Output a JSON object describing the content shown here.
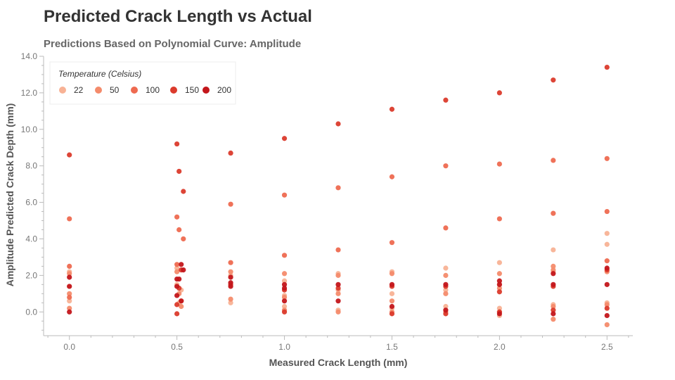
{
  "chart_data": {
    "type": "scatter",
    "title": "Predicted Crack Length vs Actual",
    "subtitle": "Predictions Based on Polynomial Curve: Amplitude",
    "xlabel": "Measured Crack Length (mm)",
    "ylabel": "Amplitude Predicted Crack Depth (mm)",
    "xlim": [
      -0.12,
      2.62
    ],
    "ylim": [
      -1.3,
      14.0
    ],
    "x_ticks": [
      "0.0",
      "0.5",
      "1.0",
      "1.5",
      "2.0",
      "2.5"
    ],
    "y_ticks": [
      "0.0",
      "2.0",
      "4.0",
      "6.0",
      "8.0",
      "10.0",
      "12.0",
      "14.0"
    ],
    "grid": false,
    "legend": {
      "title": "Temperature (Celsius)",
      "position": "top-left"
    },
    "series": [
      {
        "name": "22",
        "color": "#f8b295",
        "points": [
          [
            0.0,
            2.2
          ],
          [
            0.0,
            1.4
          ],
          [
            0.0,
            0.6
          ],
          [
            0.5,
            2.4
          ],
          [
            0.5,
            1.5
          ],
          [
            0.51,
            0.5
          ],
          [
            0.52,
            1.2
          ],
          [
            0.75,
            2.0
          ],
          [
            0.75,
            0.5
          ],
          [
            1.0,
            1.7
          ],
          [
            1.0,
            0.9
          ],
          [
            1.0,
            0.3
          ],
          [
            1.25,
            2.1
          ],
          [
            1.25,
            1.2
          ],
          [
            1.25,
            0.1
          ],
          [
            1.5,
            2.2
          ],
          [
            1.5,
            1.0
          ],
          [
            1.5,
            0.2
          ],
          [
            1.75,
            2.4
          ],
          [
            1.75,
            1.2
          ],
          [
            1.75,
            0.3
          ],
          [
            2.0,
            2.7
          ],
          [
            2.0,
            1.5
          ],
          [
            2.0,
            0.2
          ],
          [
            2.0,
            -0.2
          ],
          [
            2.25,
            3.4
          ],
          [
            2.25,
            2.2
          ],
          [
            2.25,
            0.4
          ],
          [
            2.5,
            4.3
          ],
          [
            2.5,
            3.7
          ],
          [
            2.5,
            0.5
          ]
        ]
      },
      {
        "name": "50",
        "color": "#f48b6b",
        "points": [
          [
            0.0,
            2.1
          ],
          [
            0.0,
            1.0
          ],
          [
            0.0,
            0.2
          ],
          [
            0.5,
            2.2
          ],
          [
            0.51,
            1.0
          ],
          [
            0.52,
            0.3
          ],
          [
            0.75,
            2.2
          ],
          [
            0.75,
            0.7
          ],
          [
            1.0,
            2.1
          ],
          [
            1.0,
            0.8
          ],
          [
            1.0,
            0.1
          ],
          [
            1.25,
            2.0
          ],
          [
            1.25,
            1.0
          ],
          [
            1.25,
            0.0
          ],
          [
            1.5,
            2.1
          ],
          [
            1.5,
            0.6
          ],
          [
            1.5,
            0.0
          ],
          [
            1.75,
            2.0
          ],
          [
            1.75,
            1.0
          ],
          [
            1.75,
            0.0
          ],
          [
            2.0,
            2.1
          ],
          [
            2.0,
            1.3
          ],
          [
            2.0,
            0.0
          ],
          [
            2.25,
            2.5
          ],
          [
            2.25,
            2.3
          ],
          [
            2.25,
            0.3
          ],
          [
            2.25,
            -0.4
          ],
          [
            2.5,
            2.2
          ],
          [
            2.5,
            0.4
          ],
          [
            2.5,
            -0.7
          ]
        ]
      },
      {
        "name": "100",
        "color": "#ee6a50",
        "points": [
          [
            0.0,
            5.1
          ],
          [
            0.0,
            2.5
          ],
          [
            0.0,
            0.8
          ],
          [
            0.5,
            5.2
          ],
          [
            0.51,
            4.5
          ],
          [
            0.53,
            4.0
          ],
          [
            0.5,
            2.6
          ],
          [
            0.52,
            0.6
          ],
          [
            0.75,
            5.9
          ],
          [
            0.75,
            2.7
          ],
          [
            1.0,
            6.4
          ],
          [
            1.0,
            3.1
          ],
          [
            1.25,
            6.8
          ],
          [
            1.25,
            3.4
          ],
          [
            1.5,
            7.4
          ],
          [
            1.5,
            3.8
          ],
          [
            1.75,
            8.0
          ],
          [
            1.75,
            4.6
          ],
          [
            2.0,
            8.1
          ],
          [
            2.0,
            5.1
          ],
          [
            2.25,
            8.3
          ],
          [
            2.25,
            5.4
          ],
          [
            2.5,
            8.4
          ],
          [
            2.5,
            5.5
          ],
          [
            2.5,
            2.8
          ]
        ]
      },
      {
        "name": "150",
        "color": "#db3b2c",
        "points": [
          [
            0.0,
            8.6
          ],
          [
            0.5,
            9.2
          ],
          [
            0.51,
            7.7
          ],
          [
            0.53,
            6.6
          ],
          [
            0.52,
            2.3
          ],
          [
            0.51,
            1.3
          ],
          [
            0.5,
            0.4
          ],
          [
            0.5,
            -0.1
          ],
          [
            0.75,
            8.7
          ],
          [
            0.75,
            1.5
          ],
          [
            1.0,
            9.5
          ],
          [
            1.0,
            1.2
          ],
          [
            1.0,
            0.0
          ],
          [
            1.25,
            10.3
          ],
          [
            1.25,
            1.3
          ],
          [
            1.5,
            11.1
          ],
          [
            1.5,
            1.4
          ],
          [
            1.5,
            -0.1
          ],
          [
            1.75,
            11.6
          ],
          [
            1.75,
            1.4
          ],
          [
            1.75,
            -0.1
          ],
          [
            2.0,
            12.0
          ],
          [
            2.0,
            1.1
          ],
          [
            2.0,
            0.0
          ],
          [
            2.25,
            12.7
          ],
          [
            2.25,
            1.4
          ],
          [
            2.25,
            0.1
          ],
          [
            2.5,
            13.4
          ],
          [
            2.5,
            2.3
          ],
          [
            2.5,
            0.2
          ]
        ]
      },
      {
        "name": "200",
        "color": "#c3161b",
        "points": [
          [
            0.0,
            1.9
          ],
          [
            0.0,
            1.4
          ],
          [
            0.0,
            0.0
          ],
          [
            0.5,
            1.8
          ],
          [
            0.52,
            2.6
          ],
          [
            0.53,
            2.3
          ],
          [
            0.51,
            1.8
          ],
          [
            0.5,
            1.4
          ],
          [
            0.5,
            0.9
          ],
          [
            0.52,
            0.6
          ],
          [
            0.75,
            1.9
          ],
          [
            0.75,
            1.6
          ],
          [
            0.75,
            1.4
          ],
          [
            1.0,
            1.5
          ],
          [
            1.0,
            1.3
          ],
          [
            1.0,
            0.6
          ],
          [
            1.25,
            1.5
          ],
          [
            1.25,
            0.6
          ],
          [
            1.5,
            1.5
          ],
          [
            1.5,
            0.3
          ],
          [
            1.75,
            1.5
          ],
          [
            1.75,
            0.1
          ],
          [
            2.0,
            1.7
          ],
          [
            2.0,
            1.5
          ],
          [
            2.0,
            -0.1
          ],
          [
            2.25,
            2.1
          ],
          [
            2.25,
            1.5
          ],
          [
            2.25,
            -0.1
          ],
          [
            2.5,
            2.4
          ],
          [
            2.5,
            1.5
          ],
          [
            2.5,
            -0.2
          ]
        ]
      }
    ]
  }
}
